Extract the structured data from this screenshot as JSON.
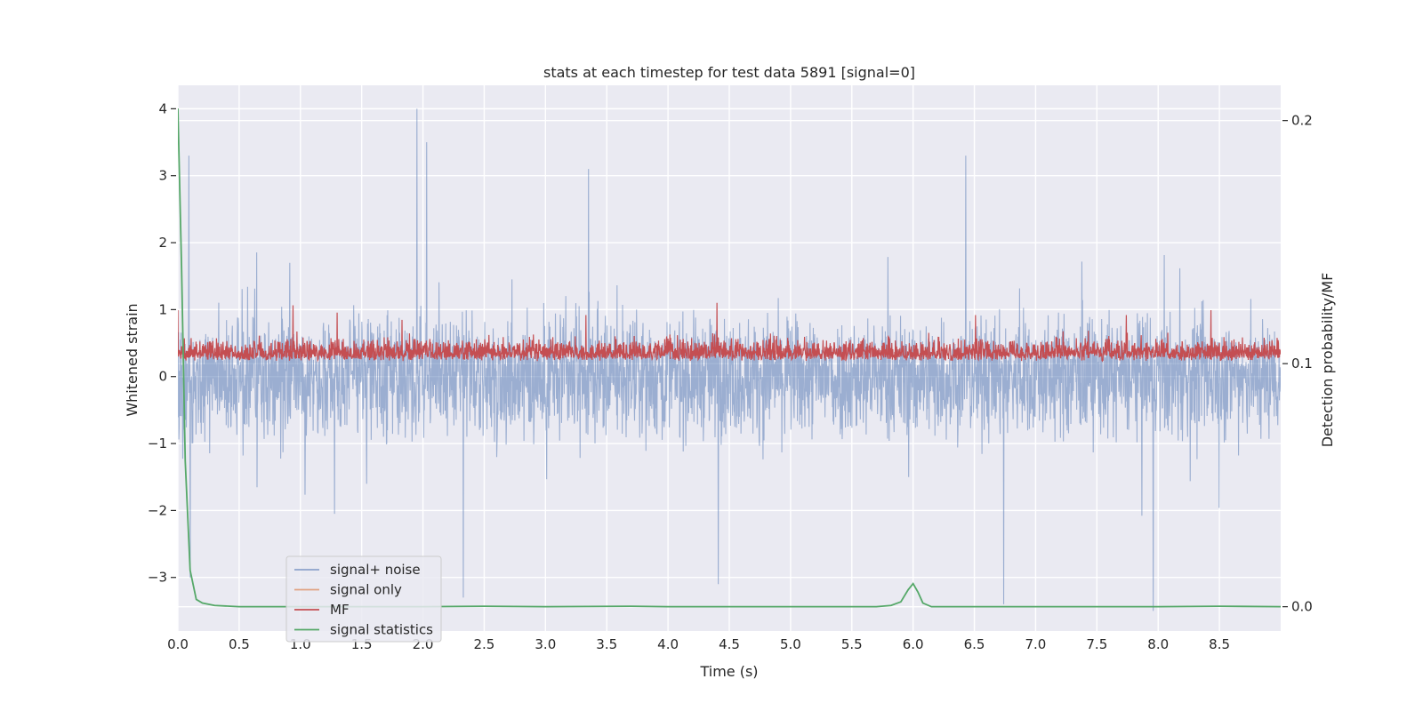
{
  "chart_data": {
    "type": "line",
    "title": "stats at each timestep for test data 5891 [signal=0]",
    "xlabel": "Time (s)",
    "ylabel": "Whitened strain",
    "ylabel_right": "Detection probability/MF",
    "xlim": [
      0.0,
      9.0
    ],
    "ylim": [
      -3.8,
      4.35
    ],
    "ylim_right": [
      -0.01,
      0.2145
    ],
    "x_ticks": [
      "0.0",
      "0.5",
      "1.0",
      "1.5",
      "2.0",
      "2.5",
      "3.0",
      "3.5",
      "4.0",
      "4.5",
      "5.0",
      "5.5",
      "6.0",
      "6.5",
      "7.0",
      "7.5",
      "8.0",
      "8.5"
    ],
    "y_ticks": [
      "−3",
      "−2",
      "−1",
      "0",
      "1",
      "2",
      "3",
      "4"
    ],
    "y_ticks_right": [
      "0.0",
      "0.1",
      "0.2"
    ],
    "grid": true,
    "legend_position": "lower-left",
    "colors": {
      "background": "#eaeaf2",
      "grid": "#ffffff",
      "noise": "#4c72b0",
      "signal_only": "#dd8452",
      "mf": "#c44e52",
      "stats": "#55a868"
    },
    "series": [
      {
        "name": "signal+ noise",
        "axis": "left",
        "style": "dense-noise",
        "summary": {
          "typical_upper": 1.8,
          "typical_lower": -1.8
        },
        "spikes": [
          [
            0.09,
            3.3
          ],
          [
            1.95,
            4.0
          ],
          [
            2.03,
            3.5
          ],
          [
            3.35,
            3.1
          ],
          [
            6.43,
            3.3
          ],
          [
            2.33,
            -3.3
          ],
          [
            4.41,
            -3.1
          ],
          [
            6.74,
            -3.4
          ],
          [
            7.96,
            -3.5
          ],
          [
            0.1,
            -3.0
          ]
        ]
      },
      {
        "name": "signal only",
        "axis": "left",
        "values": []
      },
      {
        "name": "MF",
        "axis": "right",
        "style": "dense-noise",
        "summary": {
          "baseline": 0.101,
          "typical_upper": 0.12,
          "max": 0.125
        },
        "spikes": [
          [
            0.0,
            0.122
          ],
          [
            0.94,
            0.124
          ],
          [
            1.3,
            0.121
          ],
          [
            1.83,
            0.118
          ],
          [
            3.33,
            0.12
          ],
          [
            4.4,
            0.125
          ],
          [
            6.51,
            0.12
          ],
          [
            7.74,
            0.12
          ],
          [
            8.43,
            0.122
          ]
        ]
      },
      {
        "name": "signal statistics",
        "axis": "right",
        "points": [
          [
            0.0,
            0.205
          ],
          [
            0.03,
            0.14
          ],
          [
            0.06,
            0.06
          ],
          [
            0.1,
            0.015
          ],
          [
            0.15,
            0.003
          ],
          [
            0.2,
            0.0015
          ],
          [
            0.3,
            0.0005
          ],
          [
            0.5,
            0.0
          ],
          [
            1.0,
            0.0
          ],
          [
            2.0,
            0.0
          ],
          [
            2.5,
            0.0002
          ],
          [
            3.0,
            0.0
          ],
          [
            3.7,
            0.0002
          ],
          [
            4.0,
            0.0
          ],
          [
            5.0,
            0.0
          ],
          [
            5.7,
            0.0
          ],
          [
            5.82,
            0.0005
          ],
          [
            5.9,
            0.002
          ],
          [
            5.96,
            0.007
          ],
          [
            6.0,
            0.0095
          ],
          [
            6.04,
            0.006
          ],
          [
            6.08,
            0.0015
          ],
          [
            6.15,
            0.0
          ],
          [
            7.0,
            0.0
          ],
          [
            8.0,
            0.0
          ],
          [
            8.5,
            0.0002
          ],
          [
            9.0,
            0.0
          ]
        ]
      }
    ]
  }
}
